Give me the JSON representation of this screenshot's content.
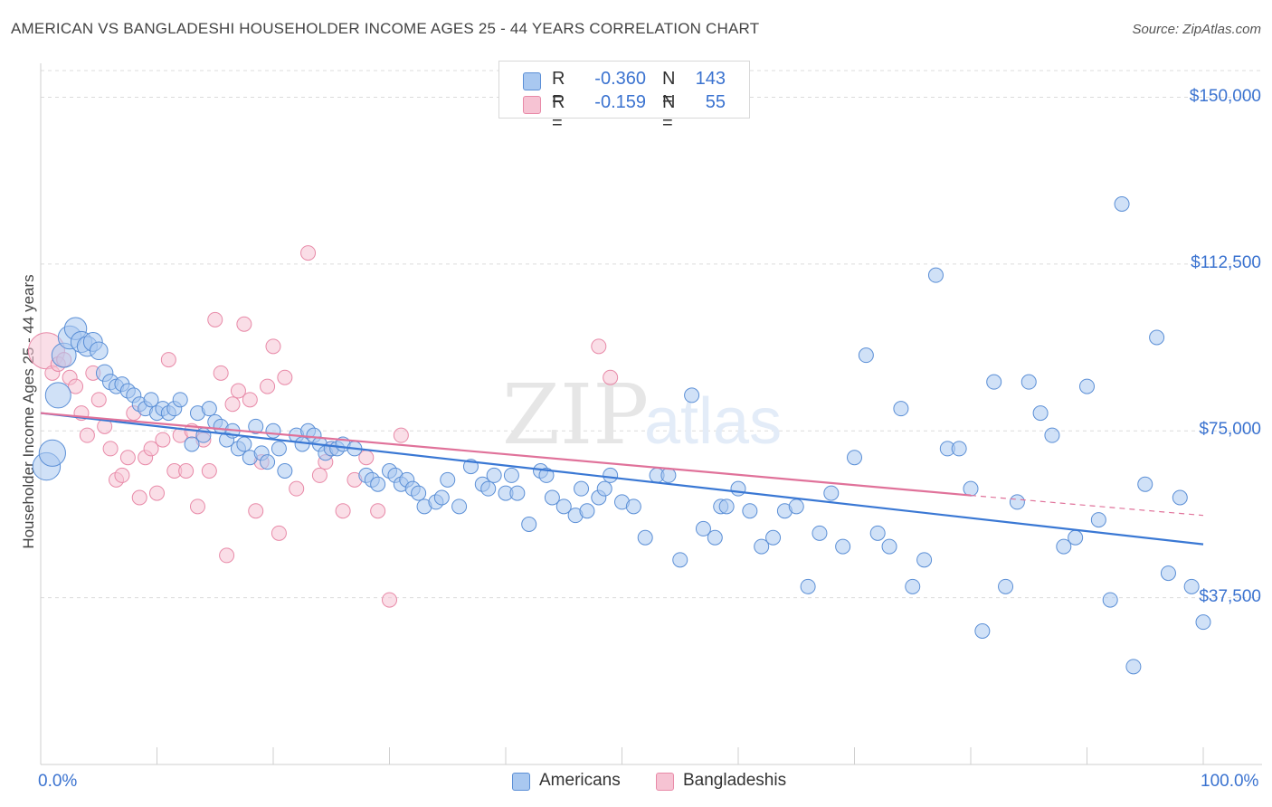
{
  "title": "AMERICAN VS BANGLADESHI HOUSEHOLDER INCOME AGES 25 - 44 YEARS CORRELATION CHART",
  "source": "Source: ZipAtlas.com",
  "legend": {
    "row1": {
      "r_label": "R =",
      "r_value": "-0.360",
      "n_label": "N =",
      "n_value": "143"
    },
    "row2": {
      "r_label": "R =",
      "r_value": "-0.159",
      "n_label": "N =",
      "n_value": "55"
    }
  },
  "bottom_legend": {
    "americans": "Americans",
    "bangladeshis": "Bangladeshis"
  },
  "colors": {
    "blue_fill": "#a9c8f0",
    "blue_stroke": "#5b8fd6",
    "blue_line": "#3a78d4",
    "pink_fill": "#f6c3d3",
    "pink_stroke": "#e88aa8",
    "pink_line": "#e0729a",
    "grid": "#dcdcdc",
    "tick_text": "#3b73d0"
  },
  "chart_data": {
    "type": "scatter",
    "title": "AMERICAN VS BANGLADESHI HOUSEHOLDER INCOME AGES 25 - 44 YEARS CORRELATION CHART",
    "xlabel": "",
    "ylabel": "Householder Income Ages 25 - 44 years",
    "xlim": [
      0,
      100
    ],
    "ylim": [
      0,
      156000
    ],
    "x_tick_labels": [
      "0.0%",
      "100.0%"
    ],
    "y_ticks": [
      37500,
      75000,
      112500,
      150000
    ],
    "y_tick_labels": [
      "$37,500",
      "$75,000",
      "$112,500",
      "$150,000"
    ],
    "grid": true,
    "watermark": "ZIPatlas",
    "series": [
      {
        "name": "Americans",
        "trend": {
          "x": [
            0,
            100
          ],
          "y": [
            79000,
            49500
          ]
        },
        "points": [
          [
            0.5,
            67000
          ],
          [
            1,
            70000
          ],
          [
            1.5,
            83000
          ],
          [
            2,
            92000
          ],
          [
            2.5,
            96000
          ],
          [
            3,
            98000
          ],
          [
            3.5,
            95000
          ],
          [
            4,
            94000
          ],
          [
            4.5,
            95000
          ],
          [
            5,
            93000
          ],
          [
            5.5,
            88000
          ],
          [
            6,
            86000
          ],
          [
            6.5,
            85000
          ],
          [
            7,
            85500
          ],
          [
            7.5,
            84000
          ],
          [
            8,
            83000
          ],
          [
            8.5,
            81000
          ],
          [
            9,
            80000
          ],
          [
            9.5,
            82000
          ],
          [
            10,
            79000
          ],
          [
            10.5,
            80000
          ],
          [
            11,
            79000
          ],
          [
            11.5,
            80000
          ],
          [
            12,
            82000
          ],
          [
            13,
            72000
          ],
          [
            13.5,
            79000
          ],
          [
            14,
            74000
          ],
          [
            14.5,
            80000
          ],
          [
            15,
            77000
          ],
          [
            15.5,
            76000
          ],
          [
            16,
            73000
          ],
          [
            16.5,
            75000
          ],
          [
            17,
            71000
          ],
          [
            17.5,
            72000
          ],
          [
            18,
            69000
          ],
          [
            18.5,
            76000
          ],
          [
            19,
            70000
          ],
          [
            19.5,
            68000
          ],
          [
            20,
            75000
          ],
          [
            20.5,
            71000
          ],
          [
            21,
            66000
          ],
          [
            22,
            74000
          ],
          [
            22.5,
            72000
          ],
          [
            23,
            75000
          ],
          [
            23.5,
            74000
          ],
          [
            24,
            72000
          ],
          [
            24.5,
            70000
          ],
          [
            25,
            71000
          ],
          [
            25.5,
            71000
          ],
          [
            26,
            72000
          ],
          [
            27,
            71000
          ],
          [
            28,
            65000
          ],
          [
            28.5,
            64000
          ],
          [
            29,
            63000
          ],
          [
            30,
            66000
          ],
          [
            30.5,
            65000
          ],
          [
            31,
            63000
          ],
          [
            31.5,
            64000
          ],
          [
            32,
            62000
          ],
          [
            32.5,
            61000
          ],
          [
            33,
            58000
          ],
          [
            34,
            59000
          ],
          [
            34.5,
            60000
          ],
          [
            35,
            64000
          ],
          [
            36,
            58000
          ],
          [
            37,
            67000
          ],
          [
            38,
            63000
          ],
          [
            38.5,
            62000
          ],
          [
            39,
            65000
          ],
          [
            40,
            61000
          ],
          [
            40.5,
            65000
          ],
          [
            41,
            61000
          ],
          [
            42,
            54000
          ],
          [
            43,
            66000
          ],
          [
            43.5,
            65000
          ],
          [
            44,
            60000
          ],
          [
            45,
            58000
          ],
          [
            46,
            56000
          ],
          [
            46.5,
            62000
          ],
          [
            47,
            57000
          ],
          [
            48,
            60000
          ],
          [
            48.5,
            62000
          ],
          [
            49,
            65000
          ],
          [
            50,
            59000
          ],
          [
            51,
            58000
          ],
          [
            52,
            51000
          ],
          [
            53,
            65000
          ],
          [
            54,
            65000
          ],
          [
            55,
            46000
          ],
          [
            56,
            83000
          ],
          [
            57,
            53000
          ],
          [
            58,
            51000
          ],
          [
            58.5,
            58000
          ],
          [
            59,
            58000
          ],
          [
            60,
            62000
          ],
          [
            61,
            57000
          ],
          [
            62,
            49000
          ],
          [
            63,
            51000
          ],
          [
            64,
            57000
          ],
          [
            65,
            58000
          ],
          [
            66,
            40000
          ],
          [
            67,
            52000
          ],
          [
            68,
            61000
          ],
          [
            69,
            49000
          ],
          [
            70,
            69000
          ],
          [
            71,
            92000
          ],
          [
            72,
            52000
          ],
          [
            73,
            49000
          ],
          [
            74,
            80000
          ],
          [
            75,
            40000
          ],
          [
            76,
            46000
          ],
          [
            77,
            110000
          ],
          [
            78,
            71000
          ],
          [
            79,
            71000
          ],
          [
            80,
            62000
          ],
          [
            81,
            30000
          ],
          [
            82,
            86000
          ],
          [
            83,
            40000
          ],
          [
            84,
            59000
          ],
          [
            85,
            86000
          ],
          [
            86,
            79000
          ],
          [
            87,
            74000
          ],
          [
            88,
            49000
          ],
          [
            89,
            51000
          ],
          [
            90,
            85000
          ],
          [
            91,
            55000
          ],
          [
            92,
            37000
          ],
          [
            93,
            126000
          ],
          [
            94,
            22000
          ],
          [
            95,
            63000
          ],
          [
            96,
            96000
          ],
          [
            97,
            43000
          ],
          [
            98,
            60000
          ],
          [
            99,
            40000
          ],
          [
            100,
            32000
          ]
        ]
      },
      {
        "name": "Bangladeshis",
        "trend": {
          "x": [
            0,
            80
          ],
          "y": [
            79000,
            60500
          ]
        },
        "trend_dashed": {
          "x": [
            80,
            100
          ],
          "y": [
            60500,
            56000
          ]
        },
        "points": [
          [
            0.5,
            93000
          ],
          [
            1,
            88000
          ],
          [
            1.5,
            90000
          ],
          [
            2,
            91000
          ],
          [
            2.5,
            87000
          ],
          [
            3,
            85000
          ],
          [
            3.5,
            79000
          ],
          [
            4,
            74000
          ],
          [
            4.5,
            88000
          ],
          [
            5,
            82000
          ],
          [
            5.5,
            76000
          ],
          [
            6,
            71000
          ],
          [
            6.5,
            64000
          ],
          [
            7,
            65000
          ],
          [
            7.5,
            69000
          ],
          [
            8,
            79000
          ],
          [
            8.5,
            60000
          ],
          [
            9,
            69000
          ],
          [
            9.5,
            71000
          ],
          [
            10,
            61000
          ],
          [
            10.5,
            73000
          ],
          [
            11,
            91000
          ],
          [
            11.5,
            66000
          ],
          [
            12,
            74000
          ],
          [
            12.5,
            66000
          ],
          [
            13,
            75000
          ],
          [
            13.5,
            58000
          ],
          [
            14,
            73000
          ],
          [
            14.5,
            66000
          ],
          [
            15,
            100000
          ],
          [
            15.5,
            88000
          ],
          [
            16,
            47000
          ],
          [
            16.5,
            81000
          ],
          [
            17,
            84000
          ],
          [
            17.5,
            99000
          ],
          [
            18,
            82000
          ],
          [
            18.5,
            57000
          ],
          [
            19,
            68000
          ],
          [
            19.5,
            85000
          ],
          [
            20,
            94000
          ],
          [
            20.5,
            52000
          ],
          [
            21,
            87000
          ],
          [
            22,
            62000
          ],
          [
            23,
            115000
          ],
          [
            24,
            65000
          ],
          [
            24.5,
            68000
          ],
          [
            25,
            71000
          ],
          [
            26,
            57000
          ],
          [
            27,
            64000
          ],
          [
            28,
            69000
          ],
          [
            29,
            57000
          ],
          [
            30,
            37000
          ],
          [
            48,
            94000
          ],
          [
            49,
            87000
          ],
          [
            31,
            74000
          ]
        ]
      }
    ]
  }
}
